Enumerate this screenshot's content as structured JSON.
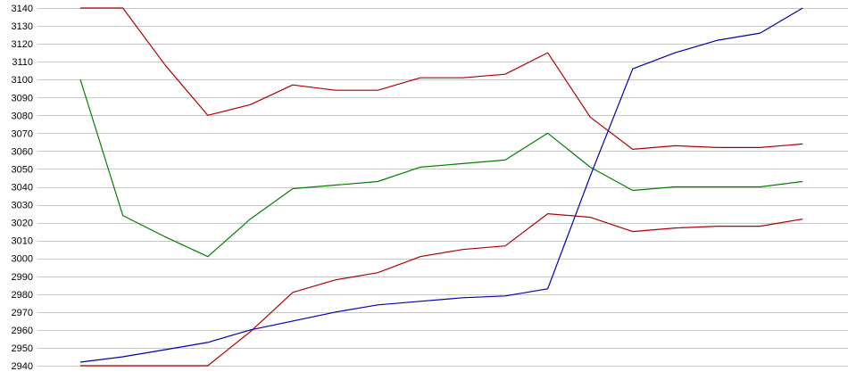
{
  "chart_data": {
    "type": "line",
    "title": "",
    "xlabel": "",
    "ylabel": "",
    "ylim": [
      2940,
      3140
    ],
    "ytick_step": 10,
    "grid": "horizontal",
    "legend": "none",
    "x": [
      1,
      2,
      3,
      4,
      5,
      6,
      7,
      8,
      9,
      10,
      11,
      12,
      13,
      14,
      15,
      16,
      17,
      18
    ],
    "series": [
      {
        "color": "#b00000",
        "values": [
          3140,
          3140,
          3108,
          3080,
          3086,
          3097,
          3094,
          3094,
          3101,
          3101,
          3103,
          3115,
          3079,
          3061,
          3063,
          3062,
          3062,
          3064
        ]
      },
      {
        "color": "#008000",
        "values": [
          3100,
          3024,
          3012,
          3001,
          3022,
          3039,
          3041,
          3043,
          3051,
          3053,
          3055,
          3070,
          3051,
          3038,
          3040,
          3040,
          3040,
          3043
        ]
      },
      {
        "color": "#b00000",
        "values": [
          2940,
          2940,
          2940,
          2940,
          2959,
          2981,
          2988,
          2992,
          3001,
          3005,
          3007,
          3025,
          3023,
          3015,
          3017,
          3018,
          3018,
          3022
        ]
      },
      {
        "color": "#0000b0",
        "values": [
          2942,
          2945,
          2949,
          2953,
          2960,
          2965,
          2970,
          2974,
          2976,
          2978,
          2979,
          2983,
          3046,
          3106,
          3115,
          3122,
          3126,
          3140
        ]
      }
    ]
  }
}
